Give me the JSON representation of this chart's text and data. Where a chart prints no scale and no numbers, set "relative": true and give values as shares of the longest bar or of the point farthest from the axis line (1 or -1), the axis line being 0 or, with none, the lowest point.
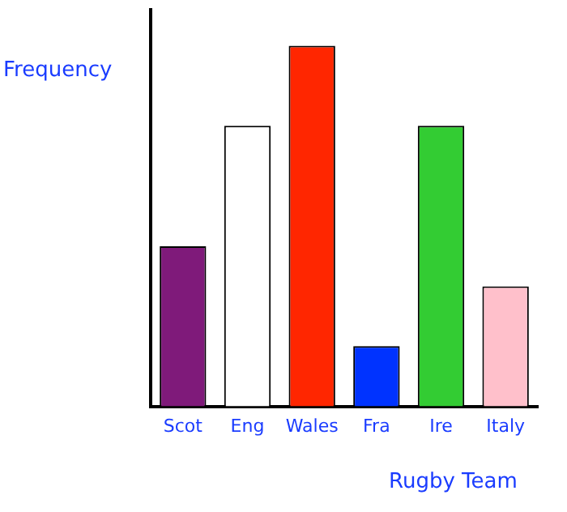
{
  "chart_data": {
    "type": "bar",
    "ylabel": "Frequency",
    "xlabel": "Rugby Team",
    "relative": true,
    "categories": [
      "Scot",
      "Eng",
      "Wales",
      "Fra",
      "Ire",
      "Italy"
    ],
    "values": [
      0.444,
      0.778,
      1,
      0.167,
      0.778,
      0.333
    ],
    "colors": [
      "#7f1a7a",
      "#ffffff",
      "#ff2600",
      "#0033ff",
      "#33cc33",
      "#ffc0cb"
    ],
    "legend": false
  }
}
